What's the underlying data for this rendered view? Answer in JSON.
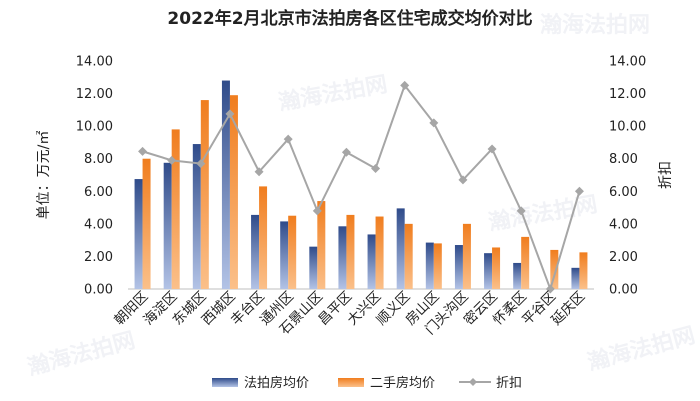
{
  "chart_data": {
    "type": "bar",
    "title": "2022年2月北京市法拍房各区住宅成交均价对比",
    "ylabel_left": "单位：万元/㎡",
    "ylabel_right": "折扣",
    "ylim": [
      0,
      14
    ],
    "y2lim": [
      0,
      14
    ],
    "yticks": [
      "0.00",
      "2.00",
      "4.00",
      "6.00",
      "8.00",
      "10.00",
      "12.00",
      "14.00"
    ],
    "categories": [
      "朝阳区",
      "海淀区",
      "东城区",
      "西城区",
      "丰台区",
      "通州区",
      "石景山区",
      "昌平区",
      "大兴区",
      "顺义区",
      "房山区",
      "门头沟区",
      "密云区",
      "怀柔区",
      "平谷区",
      "延庆区"
    ],
    "series": [
      {
        "name": "法拍房均价",
        "type": "bar",
        "color": "#5b76b0",
        "values": [
          6.75,
          7.75,
          8.9,
          12.8,
          4.55,
          4.15,
          2.6,
          3.85,
          3.35,
          4.95,
          2.85,
          2.7,
          2.2,
          1.6,
          0.0,
          1.3
        ]
      },
      {
        "name": "二手房均价",
        "type": "bar",
        "color": "#f28a2e",
        "values": [
          8.0,
          9.8,
          11.6,
          11.9,
          6.3,
          4.5,
          5.4,
          4.55,
          4.45,
          4.0,
          2.8,
          4.0,
          2.55,
          3.2,
          2.4,
          2.25
        ]
      },
      {
        "name": "折扣",
        "type": "line",
        "axis": "right",
        "color": "#a6a6a6",
        "values": [
          8.45,
          7.9,
          7.7,
          10.75,
          7.2,
          9.2,
          4.8,
          8.4,
          7.4,
          12.5,
          10.2,
          6.7,
          8.6,
          4.8,
          0.0,
          6.0
        ]
      }
    ],
    "legend_position": "bottom",
    "grid": false
  },
  "watermark": {
    "text": "瀚海法拍网",
    "url": "www.fapai.cn"
  }
}
